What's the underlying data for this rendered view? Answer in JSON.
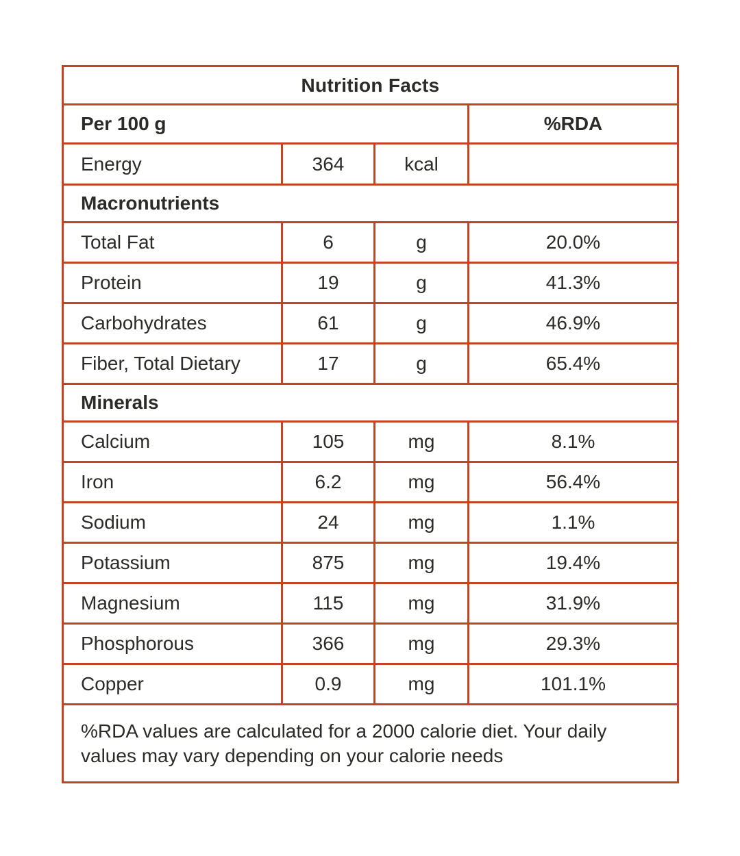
{
  "table": {
    "title": "Nutrition Facts",
    "serving_header": "Per 100 g",
    "rda_header": "%RDA",
    "energy": {
      "label": "Energy",
      "value": "364",
      "unit": "kcal",
      "rda": ""
    },
    "sections": [
      {
        "name": "Macronutrients",
        "rows": [
          {
            "label": "Total Fat",
            "value": "6",
            "unit": "g",
            "rda": "20.0%"
          },
          {
            "label": "Protein",
            "value": "19",
            "unit": "g",
            "rda": "41.3%"
          },
          {
            "label": "Carbohydrates",
            "value": "61",
            "unit": "g",
            "rda": "46.9%"
          },
          {
            "label": "Fiber, Total Dietary",
            "value": "17",
            "unit": "g",
            "rda": "65.4%"
          }
        ]
      },
      {
        "name": "Minerals",
        "rows": [
          {
            "label": "Calcium",
            "value": "105",
            "unit": "mg",
            "rda": "8.1%"
          },
          {
            "label": "Iron",
            "value": "6.2",
            "unit": "mg",
            "rda": "56.4%"
          },
          {
            "label": "Sodium",
            "value": "24",
            "unit": "mg",
            "rda": "1.1%"
          },
          {
            "label": "Potassium",
            "value": "875",
            "unit": "mg",
            "rda": "19.4%"
          },
          {
            "label": "Magnesium",
            "value": "115",
            "unit": "mg",
            "rda": "31.9%"
          },
          {
            "label": "Phosphorous",
            "value": "366",
            "unit": "mg",
            "rda": "29.3%"
          },
          {
            "label": "Copper",
            "value": "0.9",
            "unit": "mg",
            "rda": "101.1%"
          }
        ]
      }
    ],
    "footnote": "%RDA values are calculated for a 2000 calorie diet. Your daily values may vary depending on your calorie needs"
  },
  "colors": {
    "border": "#C14423",
    "text": "#2B2B28",
    "background": "#FFFFFF"
  }
}
